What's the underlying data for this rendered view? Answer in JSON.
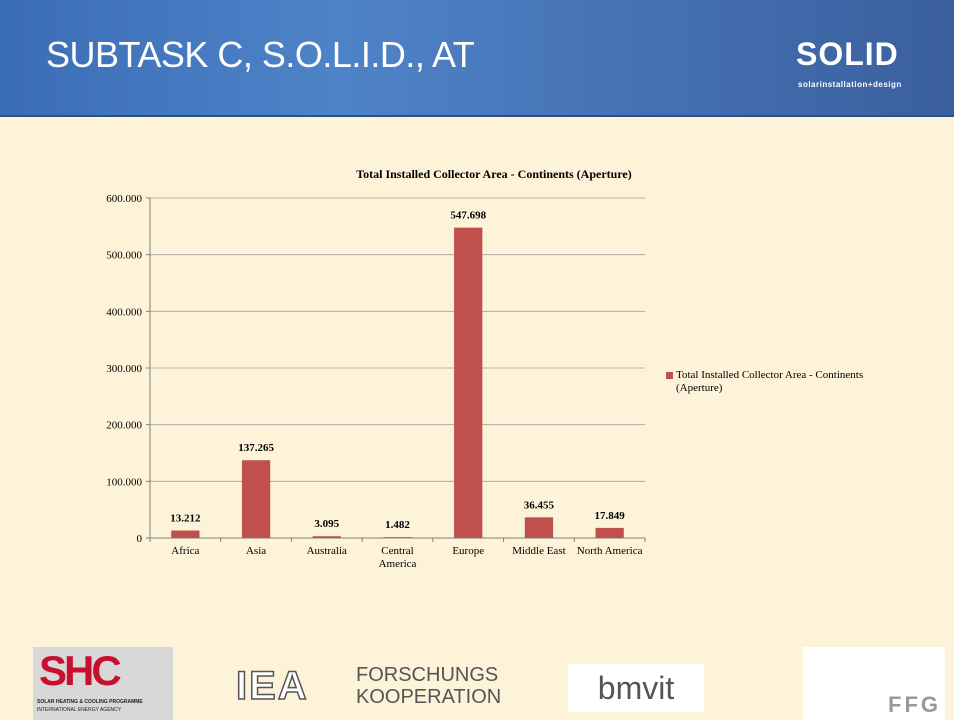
{
  "header": {
    "title": "SUBTASK C, S.O.L.I.D., AT",
    "logo": "SOLID",
    "logo_sub": "solarinstallation+design"
  },
  "chart_data": {
    "type": "bar",
    "title": "Total Installed Collector Area - Continents (Aperture)",
    "categories": [
      "Africa",
      "Asia",
      "Australia",
      "Central America",
      "Europe",
      "Middle East",
      "North America"
    ],
    "series": [
      {
        "name": "Total Installed Collector Area - Continents (Aperture)",
        "color": "#c0504d",
        "values": [
          13212,
          137265,
          3095,
          1482,
          547698,
          36455,
          17849
        ],
        "value_labels": [
          "13.212",
          "137.265",
          "3.095",
          "1.482",
          "547.698",
          "36.455",
          "17.849"
        ]
      }
    ],
    "ylim": [
      0,
      600000
    ],
    "yticks": [
      0,
      {
        "value": 100000,
        "label": "100.000"
      },
      {
        "value": 200000,
        "label": "200.000"
      },
      {
        "value": 300000,
        "label": "300.000"
      },
      {
        "value": 400000,
        "label": "400.000"
      },
      {
        "value": 500000,
        "label": "500.000"
      },
      {
        "value": 600000,
        "label": "600.000"
      }
    ],
    "grid": true,
    "legend": "right"
  },
  "footer": {
    "shc": "SHC",
    "shc_line1": "SOLAR HEATING & COOLING PROGRAMME",
    "shc_line2": "INTERNATIONAL ENERGY AGENCY",
    "iea": "IEA",
    "forschungs": "FORSCHUNGS",
    "kooperation": "KOOPERATION",
    "bmvit": "bmvit",
    "ffg": "FFG"
  }
}
